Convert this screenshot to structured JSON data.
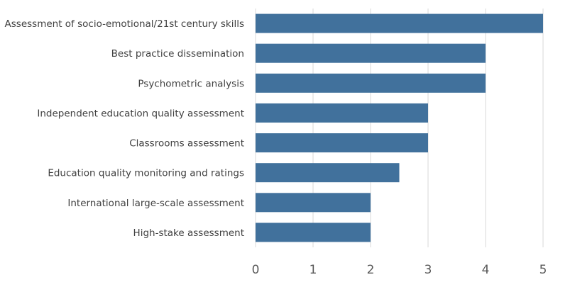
{
  "chart_data": {
    "type": "bar",
    "orientation": "horizontal",
    "categories": [
      "Assessment of socio-emotional/21st century skills",
      "Best practice dissemination",
      "Psychometric analysis",
      "Independent education quality assessment",
      "Classrooms assessment",
      "Education quality monitoring and ratings",
      "International large-scale assessment",
      "High-stake assessment"
    ],
    "values": [
      5,
      4,
      4,
      3,
      3,
      2.5,
      2,
      2
    ],
    "xlim": [
      0,
      5
    ],
    "xticks": [
      "0",
      "1",
      "2",
      "3",
      "4",
      "5"
    ],
    "grid": true,
    "bar_color": "#41719c",
    "grid_color": "#d9d9d9",
    "title": "",
    "ylabel": ""
  }
}
